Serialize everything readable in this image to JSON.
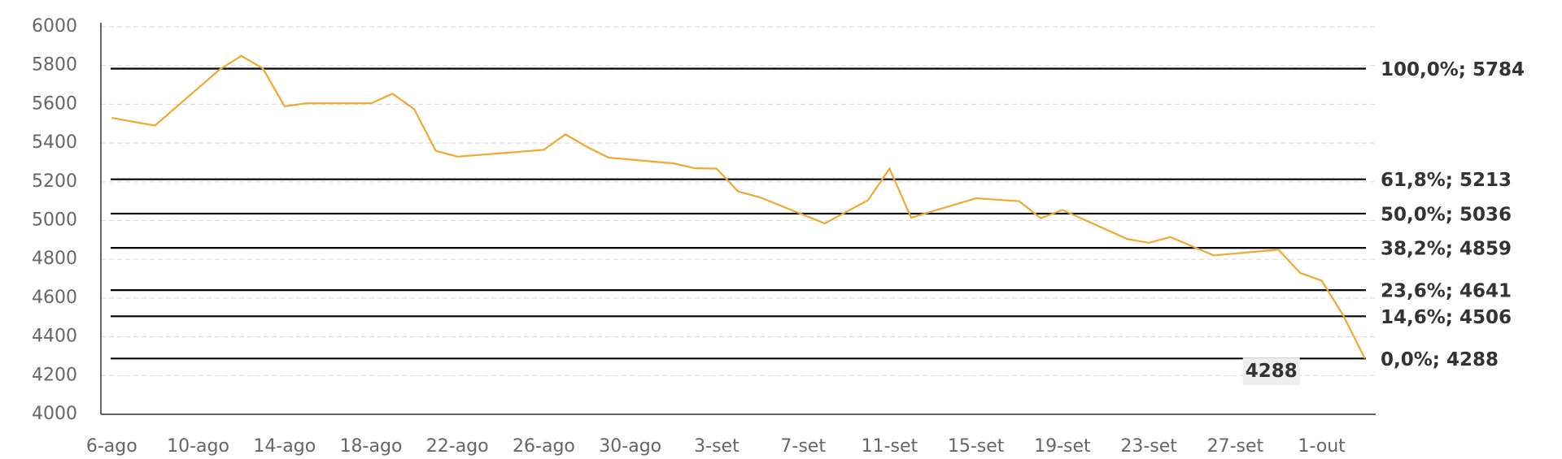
{
  "chart_data": {
    "type": "line",
    "x": [
      0,
      2,
      5,
      6,
      7,
      8,
      9,
      12,
      13,
      14,
      15,
      16,
      20,
      21,
      22,
      23,
      26,
      27,
      28,
      29,
      30,
      33,
      35,
      36,
      37,
      40,
      42,
      43,
      44,
      47,
      48,
      49,
      51,
      54,
      55,
      56,
      57,
      58
    ],
    "series": [
      {
        "color": "#f0a830",
        "values": [
          5530,
          5490,
          5780,
          5850,
          5785,
          5590,
          5605,
          5605,
          5655,
          5575,
          5360,
          5330,
          5365,
          5445,
          5380,
          5325,
          5295,
          5270,
          5268,
          5150,
          5120,
          4985,
          5105,
          5268,
          5015,
          5115,
          5100,
          5012,
          5055,
          4905,
          4885,
          4915,
          4820,
          4850,
          4730,
          4690,
          4510,
          4288
        ],
        "value_labels": [
          null,
          null,
          null,
          null,
          null,
          null,
          null,
          null,
          null,
          null,
          null,
          null,
          null,
          null,
          null,
          null,
          null,
          null,
          null,
          null,
          null,
          null,
          null,
          null,
          null,
          null,
          null,
          null,
          null,
          null,
          null,
          null,
          null,
          null,
          null,
          null,
          null,
          "4288"
        ]
      }
    ],
    "xlim": [
      -0.5,
      58.5
    ],
    "xticks": [
      {
        "value": 0,
        "label": "6-ago"
      },
      {
        "value": 4,
        "label": "10-ago"
      },
      {
        "value": 8,
        "label": "14-ago"
      },
      {
        "value": 12,
        "label": "18-ago"
      },
      {
        "value": 16,
        "label": "22-ago"
      },
      {
        "value": 20,
        "label": "26-ago"
      },
      {
        "value": 24,
        "label": "30-ago"
      },
      {
        "value": 28,
        "label": "3-set"
      },
      {
        "value": 32,
        "label": "7-set"
      },
      {
        "value": 36,
        "label": "11-set"
      },
      {
        "value": 40,
        "label": "15-set"
      },
      {
        "value": 44,
        "label": "19-set"
      },
      {
        "value": 48,
        "label": "23-set"
      },
      {
        "value": 52,
        "label": "27-set"
      },
      {
        "value": 56,
        "label": "1-out"
      }
    ],
    "ylim": [
      4000,
      6000
    ],
    "yticks": [
      4000,
      4200,
      4400,
      4600,
      4800,
      5000,
      5200,
      5400,
      5600,
      5800,
      6000
    ],
    "grid": true,
    "levels": [
      {
        "value": 5784,
        "label": "100,0%; 5784"
      },
      {
        "value": 5213,
        "label": "61,8%; 5213"
      },
      {
        "value": 5036,
        "label": "50,0%; 5036"
      },
      {
        "value": 4859,
        "label": "38,2%; 4859"
      },
      {
        "value": 4641,
        "label": "23,6%; 4641"
      },
      {
        "value": 4506,
        "label": "14,6%; 4506"
      },
      {
        "value": 4288,
        "label": "0,0%; 4288"
      }
    ]
  }
}
